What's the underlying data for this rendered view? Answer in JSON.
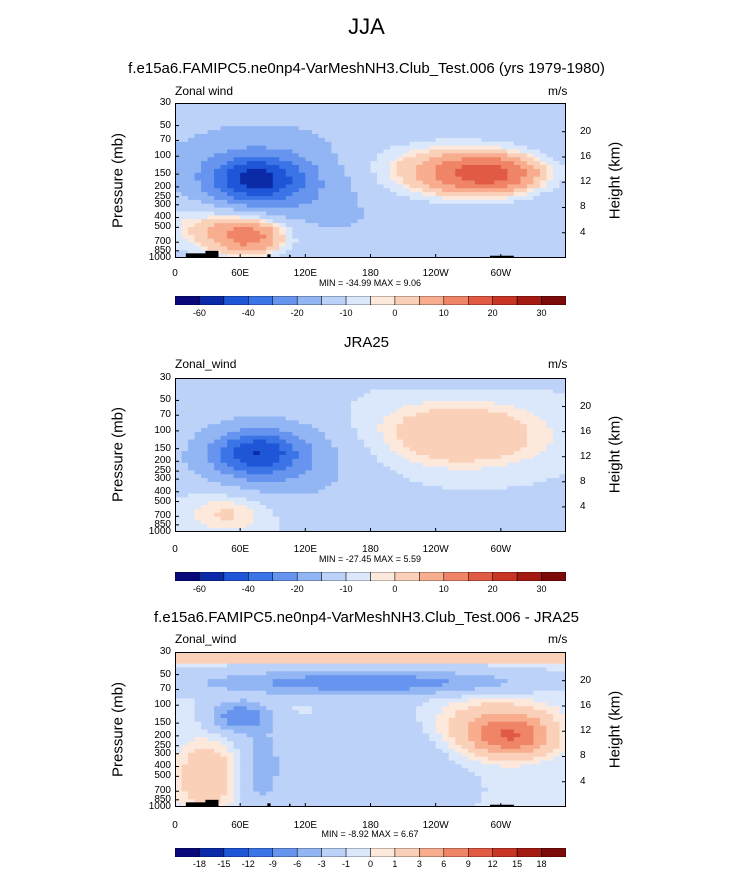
{
  "title": "JJA",
  "pressure_ticks": [
    "30",
    "50",
    "70",
    "100",
    "150",
    "200",
    "250",
    "300",
    "400",
    "500",
    "700",
    "850",
    "1000"
  ],
  "pressure_values": [
    30,
    50,
    70,
    100,
    150,
    200,
    250,
    300,
    400,
    500,
    700,
    850,
    1000
  ],
  "height_ticks": [
    "20",
    "16",
    "12",
    "8",
    "4"
  ],
  "height_values_km": [
    20,
    16,
    12,
    8,
    4
  ],
  "lon_ticks": [
    "0",
    "60E",
    "120E",
    "180",
    "120W",
    "60W"
  ],
  "lon_values_deg": [
    0,
    60,
    120,
    180,
    240,
    300
  ],
  "ylabel_left": "Pressure (mb)",
  "ylabel_right": "Height (km)",
  "colors": {
    "full_palette": [
      "#08087a",
      "#0b2aa8",
      "#1f56d8",
      "#3a74e6",
      "#6694ee",
      "#92b5f4",
      "#bcd2f8",
      "#dbe8fb",
      "#fde9dc",
      "#fbd0b8",
      "#f7ad8e",
      "#ef8466",
      "#e05a44",
      "#c93524",
      "#a51a12",
      "#7c0a08"
    ],
    "diff_palette": [
      "#08087a",
      "#0b2aa8",
      "#1f56d8",
      "#3a74e6",
      "#6694ee",
      "#92b5f4",
      "#bcd2f8",
      "#dbe8fb",
      "#fde9dc",
      "#fbd0b8",
      "#f7ad8e",
      "#ef8466",
      "#e05a44",
      "#c93524",
      "#a51a12",
      "#7c0a08"
    ],
    "topography": "#000000"
  },
  "chart_data": [
    {
      "type": "heatmap",
      "title": "f.e15a6.FAMIPC5.ne0np4-VarMeshNH3.Club_Test.006 (yrs 1979-1980)",
      "variable": "Zonal wind",
      "units": "m/s",
      "xlabel": "",
      "ylabel": "Pressure (mb)",
      "ylabel_right": "Height (km)",
      "xlim": [
        0,
        360
      ],
      "ylim_mb": [
        1000,
        30
      ],
      "min_text": "MIN = -34.99   MAX =  9.06",
      "min": -34.99,
      "max": 9.06,
      "colorbar_labels": [
        "-60",
        "-40",
        "-20",
        "-10",
        "0",
        "10",
        "20",
        "30"
      ],
      "colorbar_label_index": [
        1,
        3,
        5,
        7,
        9,
        11,
        13,
        15
      ],
      "colorbar_n": 16,
      "features": [
        {
          "lon": 75,
          "p": 165,
          "value": -34,
          "rx": 42,
          "ry": 0.55
        },
        {
          "lon": 75,
          "p": 180,
          "value": -20,
          "rx": 70,
          "ry": 0.9
        },
        {
          "lon": 95,
          "p": 220,
          "value": -12,
          "rx": 100,
          "ry": 1.2
        },
        {
          "lon": 290,
          "p": 150,
          "value": 8,
          "rx": 60,
          "ry": 0.55
        },
        {
          "lon": 250,
          "p": 140,
          "value": 4,
          "rx": 110,
          "ry": 0.9
        },
        {
          "lon": 70,
          "p": 600,
          "value": 6,
          "rx": 45,
          "ry": 0.6
        },
        {
          "lon": 40,
          "p": 450,
          "value": 3,
          "rx": 90,
          "ry": 1.0
        }
      ],
      "background": -6,
      "top_value": -6
    },
    {
      "type": "heatmap",
      "title": "JRA25",
      "variable": "Zonal_wind",
      "units": "m/s",
      "xlabel": "",
      "ylabel": "Pressure (mb)",
      "ylabel_right": "Height (km)",
      "xlim": [
        0,
        360
      ],
      "ylim_mb": [
        1000,
        30
      ],
      "min_text": "MIN = -27.45   MAX =  5.59",
      "min": -27.45,
      "max": 5.59,
      "colorbar_labels": [
        "-60",
        "-40",
        "-20",
        "-10",
        "0",
        "10",
        "20",
        "30"
      ],
      "colorbar_label_index": [
        1,
        3,
        5,
        7,
        9,
        11,
        13,
        15
      ],
      "colorbar_n": 16,
      "features": [
        {
          "lon": 75,
          "p": 165,
          "value": -26,
          "rx": 40,
          "ry": 0.5
        },
        {
          "lon": 80,
          "p": 175,
          "value": -17,
          "rx": 65,
          "ry": 0.85
        },
        {
          "lon": 95,
          "p": 220,
          "value": -8,
          "rx": 110,
          "ry": 1.3
        },
        {
          "lon": 260,
          "p": 110,
          "value": 4,
          "rx": 120,
          "ry": 1.1
        },
        {
          "lon": 50,
          "p": 600,
          "value": 3,
          "rx": 60,
          "ry": 0.8
        }
      ],
      "background": -3,
      "top_value": -5
    },
    {
      "type": "heatmap",
      "title": "f.e15a6.FAMIPC5.ne0np4-VarMeshNH3.Club_Test.006 - JRA25",
      "variable": "Zonal_wind",
      "units": "m/s",
      "xlabel": "",
      "ylabel": "Pressure (mb)",
      "ylabel_right": "Height (km)",
      "xlim": [
        0,
        360
      ],
      "ylim_mb": [
        1000,
        30
      ],
      "min_text": "MIN = -8.92   MAX =  6.67",
      "min": -8.92,
      "max": 6.67,
      "colorbar_labels": [
        "-18",
        "-15",
        "-12",
        "-9",
        "-6",
        "-3",
        "-1",
        "0",
        "1",
        "3",
        "6",
        "9",
        "12",
        "15",
        "18"
      ],
      "colorbar_label_index": [
        1,
        2,
        3,
        4,
        5,
        6,
        7,
        8,
        9,
        10,
        11,
        12,
        13,
        14,
        15
      ],
      "colorbar_n": 16,
      "features": [
        {
          "lon": 170,
          "p": 60,
          "value": -6,
          "rx": 160,
          "ry": 0.3
        },
        {
          "lon": 60,
          "p": 130,
          "value": -6,
          "rx": 30,
          "ry": 0.4
        },
        {
          "lon": 310,
          "p": 200,
          "value": 5,
          "rx": 40,
          "ry": 0.5
        },
        {
          "lon": 290,
          "p": 170,
          "value": 2,
          "rx": 70,
          "ry": 0.8
        },
        {
          "lon": 80,
          "p": 400,
          "value": -3,
          "rx": 25,
          "ry": 1.2
        },
        {
          "lon": 30,
          "p": 500,
          "value": 2,
          "rx": 35,
          "ry": 0.9
        },
        {
          "lon": 200,
          "p": 350,
          "value": -2,
          "rx": 80,
          "ry": 1.5
        }
      ],
      "background": -0.5,
      "top_value": 1
    }
  ]
}
